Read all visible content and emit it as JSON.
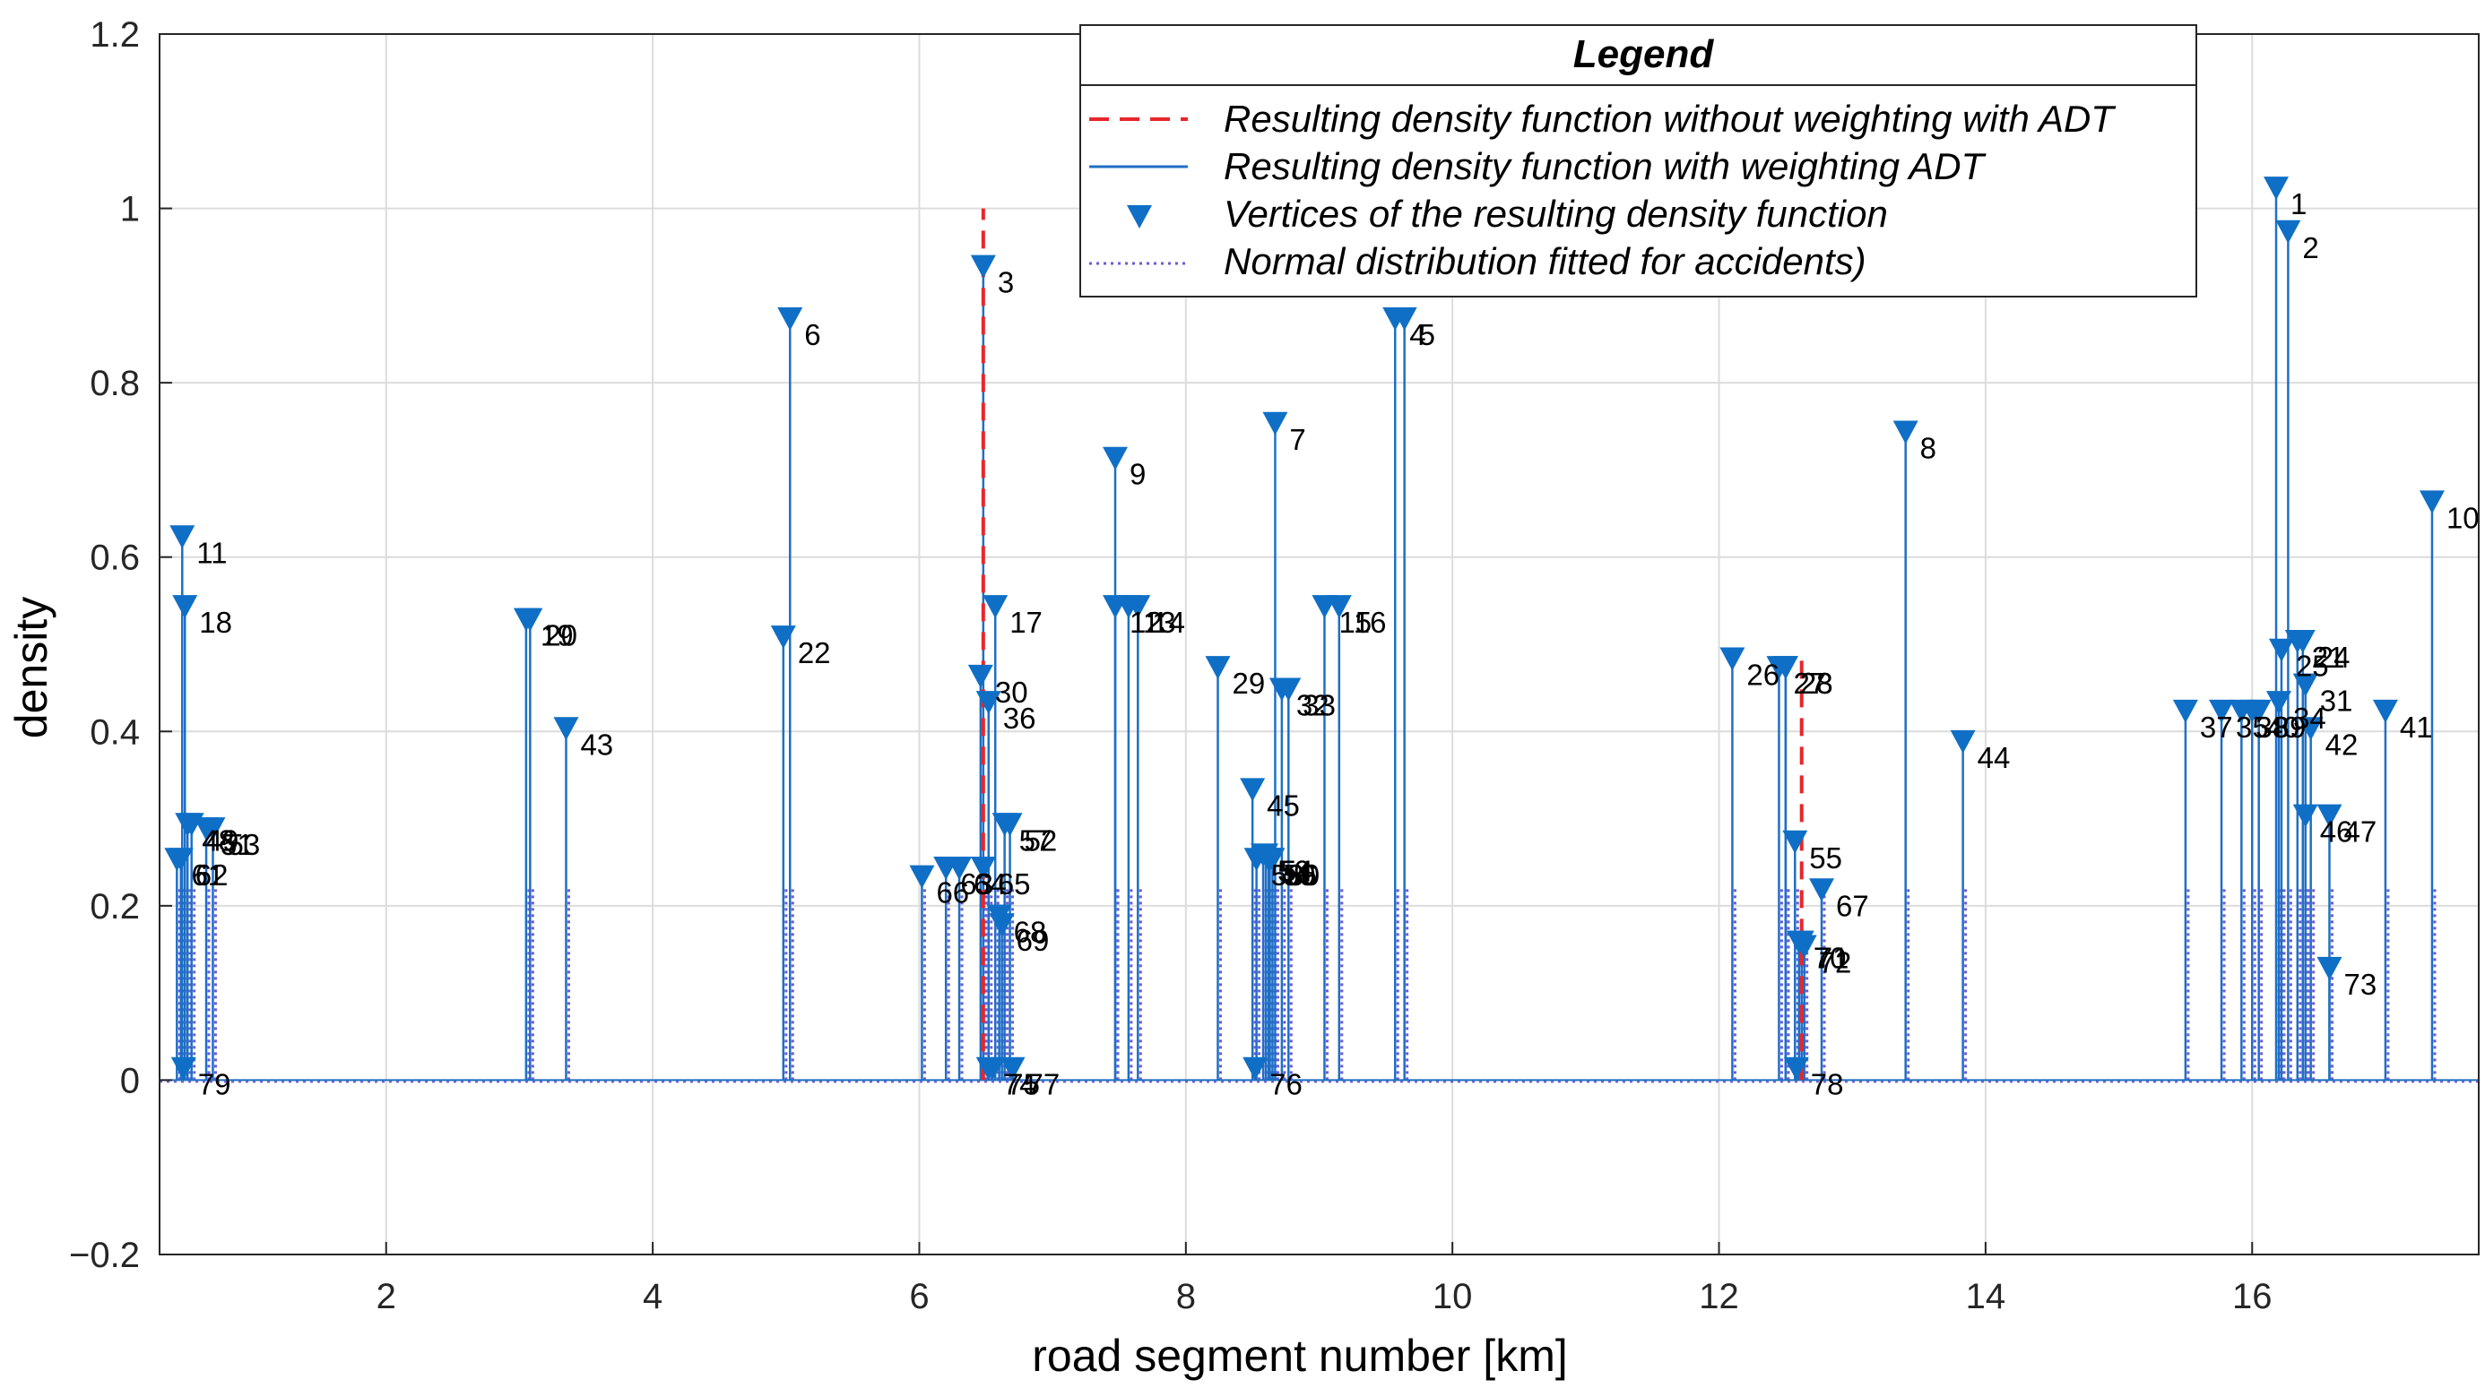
{
  "chart_data": {
    "type": "line",
    "title": "",
    "xlabel": "road segment number [km]",
    "ylabel": "density",
    "xlim": [
      0.3,
      17.7
    ],
    "ylim": [
      -0.2,
      1.2
    ],
    "xticks": [
      2,
      4,
      6,
      8,
      10,
      12,
      14,
      16
    ],
    "yticks": [
      -0.2,
      0,
      0.2,
      0.4,
      0.6,
      0.8,
      1,
      1.2
    ],
    "ytick_labels": [
      "−0.2",
      "0",
      "0.2",
      "0.4",
      "0.6",
      "0.8",
      "1",
      "1.2"
    ],
    "grid": true,
    "legend": {
      "title": "Legend",
      "position": "top-right",
      "entries": [
        "Resulting density function without weighting with ADT",
        "Resulting density function with weighting ADT",
        "Vertices of the resulting density function",
        "Normal distribution fitted for accidents)"
      ]
    },
    "series": [
      {
        "name": "Resulting density function without weighting with ADT",
        "style": "dashed",
        "color": "#e8262b",
        "peaks": [
          {
            "x": 6.48,
            "y": 1.0
          },
          {
            "x": 12.62,
            "y": 0.49
          }
        ]
      },
      {
        "name": "Resulting density function with weighting ADT",
        "style": "solid",
        "color": "#1f6fc5"
      },
      {
        "name": "Normal distribution fitted for accidents)",
        "style": "dotted",
        "color": "#6b5bd6"
      }
    ],
    "vertices": [
      {
        "id": "1",
        "x": 16.18,
        "y": 1.02
      },
      {
        "id": "2",
        "x": 16.27,
        "y": 0.97
      },
      {
        "id": "3",
        "x": 6.48,
        "y": 0.93
      },
      {
        "id": "4",
        "x": 9.57,
        "y": 0.87
      },
      {
        "id": "5",
        "x": 9.64,
        "y": 0.87
      },
      {
        "id": "6",
        "x": 5.03,
        "y": 0.87
      },
      {
        "id": "7",
        "x": 8.67,
        "y": 0.75
      },
      {
        "id": "8",
        "x": 13.4,
        "y": 0.74
      },
      {
        "id": "9",
        "x": 7.47,
        "y": 0.71
      },
      {
        "id": "10",
        "x": 17.35,
        "y": 0.66
      },
      {
        "id": "11",
        "x": 0.47,
        "y": 0.62
      },
      {
        "id": "12",
        "x": 7.47,
        "y": 0.54
      },
      {
        "id": "13",
        "x": 7.57,
        "y": 0.54
      },
      {
        "id": "14",
        "x": 7.64,
        "y": 0.54
      },
      {
        "id": "15",
        "x": 9.04,
        "y": 0.54
      },
      {
        "id": "16",
        "x": 9.15,
        "y": 0.54
      },
      {
        "id": "17",
        "x": 6.57,
        "y": 0.54
      },
      {
        "id": "18",
        "x": 0.49,
        "y": 0.54
      },
      {
        "id": "19",
        "x": 3.05,
        "y": 0.525
      },
      {
        "id": "20",
        "x": 3.08,
        "y": 0.525
      },
      {
        "id": "21",
        "x": 16.34,
        "y": 0.5
      },
      {
        "id": "22",
        "x": 4.98,
        "y": 0.505
      },
      {
        "id": "23",
        "x": 12.5,
        "y": 0.47
      },
      {
        "id": "24",
        "x": 16.38,
        "y": 0.5
      },
      {
        "id": "25",
        "x": 16.22,
        "y": 0.49
      },
      {
        "id": "26",
        "x": 12.1,
        "y": 0.48
      },
      {
        "id": "27",
        "x": 12.45,
        "y": 0.47
      },
      {
        "id": "28",
        "x": 12.5,
        "y": 0.47
      },
      {
        "id": "29",
        "x": 8.24,
        "y": 0.47
      },
      {
        "id": "30",
        "x": 6.46,
        "y": 0.46
      },
      {
        "id": "31",
        "x": 16.4,
        "y": 0.45
      },
      {
        "id": "32",
        "x": 8.72,
        "y": 0.445
      },
      {
        "id": "33",
        "x": 8.77,
        "y": 0.445
      },
      {
        "id": "34",
        "x": 16.2,
        "y": 0.43
      },
      {
        "id": "35",
        "x": 15.77,
        "y": 0.42
      },
      {
        "id": "36",
        "x": 6.52,
        "y": 0.43
      },
      {
        "id": "37",
        "x": 15.5,
        "y": 0.42
      },
      {
        "id": "38",
        "x": 15.92,
        "y": 0.42
      },
      {
        "id": "39",
        "x": 16.05,
        "y": 0.42
      },
      {
        "id": "40",
        "x": 16.0,
        "y": 0.42
      },
      {
        "id": "41",
        "x": 17.0,
        "y": 0.42
      },
      {
        "id": "42",
        "x": 16.44,
        "y": 0.4
      },
      {
        "id": "43",
        "x": 3.35,
        "y": 0.4
      },
      {
        "id": "44",
        "x": 13.83,
        "y": 0.385
      },
      {
        "id": "45",
        "x": 8.5,
        "y": 0.33
      },
      {
        "id": "46",
        "x": 16.4,
        "y": 0.3
      },
      {
        "id": "47",
        "x": 16.58,
        "y": 0.3
      },
      {
        "id": "48",
        "x": 0.51,
        "y": 0.29
      },
      {
        "id": "49",
        "x": 0.54,
        "y": 0.29
      },
      {
        "id": "50",
        "x": 8.58,
        "y": 0.255
      },
      {
        "id": "51",
        "x": 0.65,
        "y": 0.285
      },
      {
        "id": "52",
        "x": 6.68,
        "y": 0.29
      },
      {
        "id": "53",
        "x": 0.7,
        "y": 0.285
      },
      {
        "id": "54",
        "x": 8.6,
        "y": 0.255
      },
      {
        "id": "55",
        "x": 12.57,
        "y": 0.27
      },
      {
        "id": "56",
        "x": 8.63,
        "y": 0.25
      },
      {
        "id": "57",
        "x": 6.64,
        "y": 0.29
      },
      {
        "id": "58",
        "x": 8.53,
        "y": 0.25
      },
      {
        "id": "59",
        "x": 8.62,
        "y": 0.25
      },
      {
        "id": "60",
        "x": 8.65,
        "y": 0.25
      },
      {
        "id": "61",
        "x": 0.43,
        "y": 0.25
      },
      {
        "id": "62",
        "x": 0.46,
        "y": 0.25
      },
      {
        "id": "63",
        "x": 6.2,
        "y": 0.24
      },
      {
        "id": "64",
        "x": 6.3,
        "y": 0.24
      },
      {
        "id": "65",
        "x": 6.48,
        "y": 0.24
      },
      {
        "id": "66",
        "x": 6.02,
        "y": 0.23
      },
      {
        "id": "67",
        "x": 12.77,
        "y": 0.215
      },
      {
        "id": "68",
        "x": 6.6,
        "y": 0.185
      },
      {
        "id": "69",
        "x": 6.62,
        "y": 0.175
      },
      {
        "id": "70",
        "x": 12.6,
        "y": 0.155
      },
      {
        "id": "71",
        "x": 12.62,
        "y": 0.155
      },
      {
        "id": "72",
        "x": 12.64,
        "y": 0.15
      },
      {
        "id": "73",
        "x": 16.58,
        "y": 0.125
      },
      {
        "id": "74",
        "x": 6.52,
        "y": 0.01
      },
      {
        "id": "75",
        "x": 6.55,
        "y": 0.01
      },
      {
        "id": "76",
        "x": 8.52,
        "y": 0.01
      },
      {
        "id": "77",
        "x": 6.7,
        "y": 0.01
      },
      {
        "id": "78",
        "x": 12.58,
        "y": 0.01
      },
      {
        "id": "79",
        "x": 0.48,
        "y": 0.01
      }
    ],
    "colors": {
      "axis": "#262626",
      "grid": "#dcdcdc",
      "solid_line": "#1f6fc5",
      "dashed_line": "#e8262b",
      "dotted_line": "#6b5bd6",
      "marker": "#0f6fc6"
    }
  }
}
